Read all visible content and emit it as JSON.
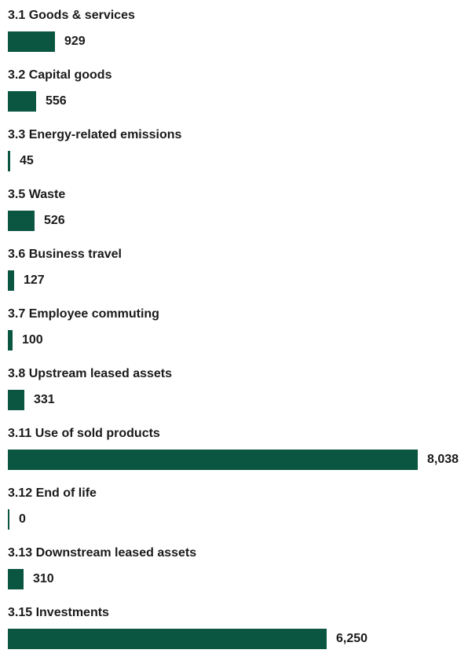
{
  "colors": {
    "bar": "#0b5640",
    "text": "#1a1a1a",
    "background": "#ffffff"
  },
  "chart_data": {
    "type": "bar",
    "orientation": "horizontal",
    "categories": [
      "3.1 Goods & services",
      "3.2 Capital goods",
      "3.3 Energy-related emissions",
      "3.5 Waste",
      "3.6 Business travel",
      "3.7 Employee commuting",
      "3.8 Upstream leased assets",
      "3.11 Use of sold products",
      "3.12 End of life",
      "3.13 Downstream leased assets",
      "3.15 Investments"
    ],
    "values": [
      929,
      556,
      45,
      526,
      127,
      100,
      331,
      8038,
      0,
      310,
      6250
    ],
    "value_labels": [
      "929",
      "556",
      "45",
      "526",
      "127",
      "100",
      "331",
      "8,038",
      "0",
      "310",
      "6,250"
    ],
    "xlim": [
      0,
      8038
    ],
    "grid": false,
    "legend": "none"
  }
}
